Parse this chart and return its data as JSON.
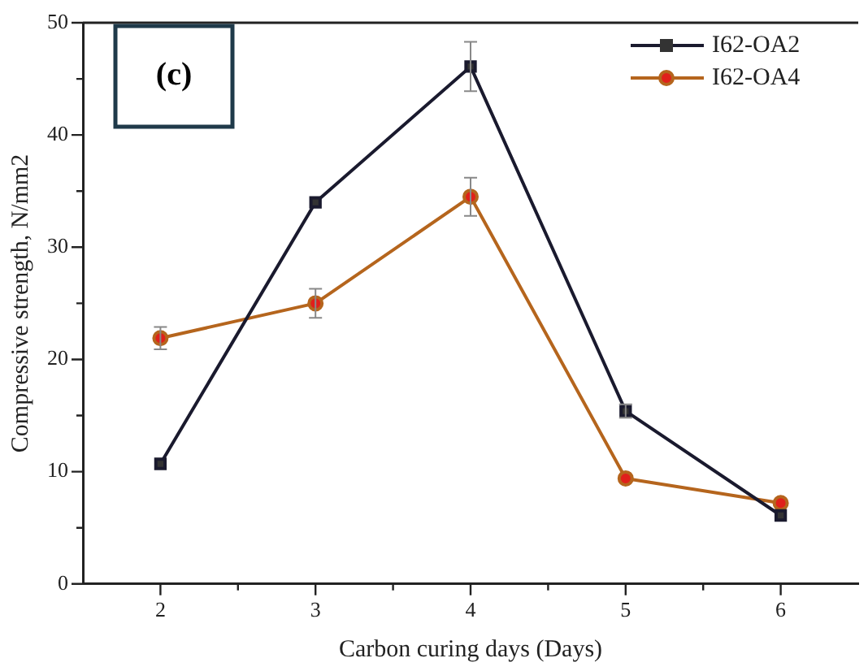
{
  "chart_data": {
    "type": "line",
    "xlabel": "Carbon curing days (Days)",
    "ylabel": "Compressive strength, N/mm2",
    "x": [
      2,
      3,
      4,
      5,
      6
    ],
    "series": [
      {
        "name": "I62-OA2",
        "color": "#1a1a2e",
        "marker": "square",
        "values": [
          10.7,
          34.0,
          46.1,
          15.4,
          6.1
        ],
        "errors": [
          null,
          null,
          2.2,
          0.6,
          null
        ]
      },
      {
        "name": "I62-OA4",
        "color": "#b5651d",
        "marker": "circle",
        "values": [
          21.9,
          25.0,
          34.5,
          9.4,
          7.2
        ],
        "errors": [
          1.0,
          1.3,
          1.7,
          null,
          null
        ]
      }
    ],
    "xlim": [
      1.5,
      6.5
    ],
    "xticks": [
      2,
      {
        "value": 2.5,
        "label": null
      },
      3,
      {
        "value": 3.5,
        "label": null
      },
      4,
      {
        "value": 4.5,
        "label": null
      },
      5,
      {
        "value": 5.5,
        "label": null
      },
      6
    ],
    "ylim": [
      0,
      50
    ],
    "yticks": [
      0,
      {
        "value": 5,
        "label": null
      },
      10,
      {
        "value": 15,
        "label": null
      },
      20,
      {
        "value": 25,
        "label": null
      },
      30,
      {
        "value": 35,
        "label": null
      },
      40,
      {
        "value": 45,
        "label": null
      },
      50
    ],
    "annotations": [
      "(c)"
    ],
    "legend": "top right",
    "grid": false,
    "line_style": "solid"
  }
}
